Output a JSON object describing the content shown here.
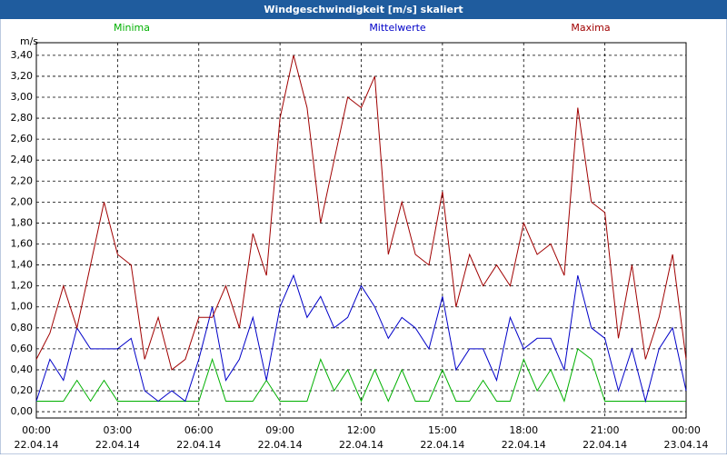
{
  "chart_data": {
    "type": "line",
    "title": "Windgeschwindigkeit [m/s] skaliert",
    "y_label": "m/s",
    "x": [
      0,
      0.5,
      1,
      1.5,
      2,
      2.5,
      3,
      3.5,
      4,
      4.5,
      5,
      5.5,
      6,
      6.5,
      7,
      7.5,
      8,
      8.5,
      9,
      9.5,
      10,
      10.5,
      11,
      11.5,
      12,
      12.5,
      13,
      13.5,
      14,
      14.5,
      15,
      15.5,
      16,
      16.5,
      17,
      17.5,
      18,
      18.5,
      19,
      19.5,
      20,
      20.5,
      21,
      21.5,
      22,
      22.5,
      23,
      23.5,
      24
    ],
    "series": [
      {
        "name": "Minima",
        "color": "#00b000",
        "values": [
          0.1,
          0.1,
          0.1,
          0.3,
          0.1,
          0.3,
          0.1,
          0.1,
          0.1,
          0.1,
          0.1,
          0.1,
          0.1,
          0.5,
          0.1,
          0.1,
          0.1,
          0.3,
          0.1,
          0.1,
          0.1,
          0.5,
          0.2,
          0.4,
          0.1,
          0.4,
          0.1,
          0.4,
          0.1,
          0.1,
          0.4,
          0.1,
          0.1,
          0.3,
          0.1,
          0.1,
          0.5,
          0.2,
          0.4,
          0.1,
          0.6,
          0.5,
          0.1,
          0.1,
          0.1,
          0.1,
          0.1,
          0.1,
          0.1
        ]
      },
      {
        "name": "Mittelwerte",
        "color": "#0000c8",
        "values": [
          0.1,
          0.5,
          0.3,
          0.8,
          0.6,
          0.6,
          0.6,
          0.7,
          0.2,
          0.1,
          0.2,
          0.1,
          0.5,
          1.0,
          0.3,
          0.5,
          0.9,
          0.3,
          1.0,
          1.3,
          0.9,
          1.1,
          0.8,
          0.9,
          1.2,
          1.0,
          0.7,
          0.9,
          0.8,
          0.6,
          1.1,
          0.4,
          0.6,
          0.6,
          0.3,
          0.9,
          0.6,
          0.7,
          0.7,
          0.4,
          1.3,
          0.8,
          0.7,
          0.2,
          0.6,
          0.1,
          0.6,
          0.8,
          0.2
        ]
      },
      {
        "name": "Maxima",
        "color": "#a00000",
        "values": [
          0.5,
          0.75,
          1.2,
          0.8,
          1.4,
          2.0,
          1.5,
          1.4,
          0.5,
          0.9,
          0.4,
          0.5,
          0.9,
          0.9,
          1.2,
          0.8,
          1.7,
          1.3,
          2.8,
          3.4,
          2.9,
          1.8,
          2.4,
          3.0,
          2.9,
          3.2,
          1.5,
          2.0,
          1.5,
          1.4,
          2.1,
          1.0,
          1.5,
          1.2,
          1.4,
          1.2,
          1.8,
          1.5,
          1.6,
          1.3,
          2.9,
          2.0,
          1.9,
          0.7,
          1.4,
          0.5,
          0.9,
          1.5,
          0.5
        ]
      }
    ],
    "xlim": [
      0,
      24
    ],
    "xticks": [
      {
        "value": 0,
        "label": "00:00"
      },
      {
        "value": 3,
        "label": "03:00"
      },
      {
        "value": 6,
        "label": "06:00"
      },
      {
        "value": 9,
        "label": "09:00"
      },
      {
        "value": 12,
        "label": "12:00"
      },
      {
        "value": 15,
        "label": "15:00"
      },
      {
        "value": 18,
        "label": "18:00"
      },
      {
        "value": 21,
        "label": "21:00"
      },
      {
        "value": 24,
        "label": "00:00"
      }
    ],
    "xtick_dates": [
      "22.04.14",
      "22.04.14",
      "22.04.14",
      "22.04.14",
      "22.04.14",
      "22.04.14",
      "22.04.14",
      "22.04.14",
      "23.04.14"
    ],
    "ylim": [
      -0.06,
      3.52
    ],
    "yticks": [
      {
        "value": 0,
        "label": "0,00"
      },
      {
        "value": 0.2,
        "label": "0,20"
      },
      {
        "value": 0.4,
        "label": "0,40"
      },
      {
        "value": 0.6,
        "label": "0,60"
      },
      {
        "value": 0.8,
        "label": "0,80"
      },
      {
        "value": 1.0,
        "label": "1,00"
      },
      {
        "value": 1.2,
        "label": "1,20"
      },
      {
        "value": 1.4,
        "label": "1,40"
      },
      {
        "value": 1.6,
        "label": "1,60"
      },
      {
        "value": 1.8,
        "label": "1,80"
      },
      {
        "value": 2.0,
        "label": "2,00"
      },
      {
        "value": 2.2,
        "label": "2,20"
      },
      {
        "value": 2.4,
        "label": "2,40"
      },
      {
        "value": 2.6,
        "label": "2,60"
      },
      {
        "value": 2.8,
        "label": "2,80"
      },
      {
        "value": 3.0,
        "label": "3,00"
      },
      {
        "value": 3.2,
        "label": "3,20"
      },
      {
        "value": 3.4,
        "label": "3,40"
      }
    ],
    "grid": true
  }
}
